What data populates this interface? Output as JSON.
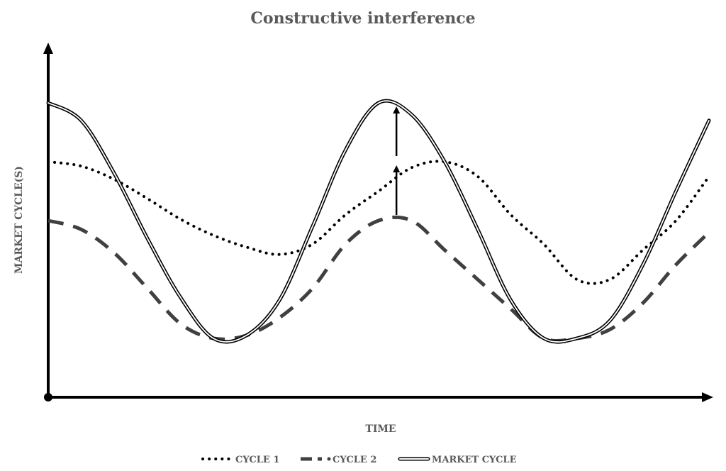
{
  "chart_data": {
    "type": "line",
    "title": "Constructive interference",
    "xlabel": "TIME",
    "ylabel": "MARKET CYCLE(S)",
    "xlim": [
      0,
      1
    ],
    "ylim": [
      0,
      1
    ],
    "grid": false,
    "legend_position": "bottom",
    "series": [
      {
        "name": "CYCLE 1",
        "style": "dotted",
        "color": "#000000",
        "x": [
          0,
          0.05,
          0.1,
          0.15,
          0.2,
          0.25,
          0.3,
          0.35,
          0.4,
          0.45,
          0.5,
          0.55,
          0.6,
          0.65,
          0.7,
          0.75,
          0.8,
          0.85,
          0.9,
          0.95,
          1.0
        ],
        "y": [
          0.8,
          0.785,
          0.74,
          0.675,
          0.605,
          0.55,
          0.51,
          0.485,
          0.52,
          0.62,
          0.7,
          0.78,
          0.8,
          0.75,
          0.62,
          0.52,
          0.4,
          0.4,
          0.5,
          0.6,
          0.75
        ]
      },
      {
        "name": "CYCLE 2",
        "style": "dashed",
        "color": "#404040",
        "x": [
          0,
          0.05,
          0.1,
          0.15,
          0.2,
          0.25,
          0.3,
          0.35,
          0.4,
          0.45,
          0.5,
          0.55,
          0.6,
          0.65,
          0.7,
          0.75,
          0.8,
          0.85,
          0.9,
          0.95,
          1.0
        ],
        "y": [
          0.6,
          0.57,
          0.49,
          0.37,
          0.25,
          0.2,
          0.21,
          0.27,
          0.37,
          0.52,
          0.6,
          0.6,
          0.5,
          0.4,
          0.3,
          0.2,
          0.2,
          0.23,
          0.32,
          0.45,
          0.56
        ]
      },
      {
        "name": "MARKET CYCLE",
        "style": "double",
        "color": "#000000",
        "x": [
          0,
          0.05,
          0.1,
          0.15,
          0.2,
          0.25,
          0.3,
          0.35,
          0.4,
          0.45,
          0.5,
          0.55,
          0.6,
          0.65,
          0.7,
          0.75,
          0.8,
          0.85,
          0.9,
          0.95,
          1.0
        ],
        "y": [
          1.0,
          0.94,
          0.76,
          0.54,
          0.34,
          0.2,
          0.21,
          0.33,
          0.58,
          0.84,
          1.0,
          0.96,
          0.8,
          0.57,
          0.33,
          0.2,
          0.2,
          0.26,
          0.45,
          0.7,
          0.94
        ]
      }
    ],
    "annotations": [
      {
        "type": "arrow",
        "x": 0.527,
        "from": 0.6,
        "to": 0.8
      },
      {
        "type": "arrow",
        "x": 0.527,
        "from": 0.8,
        "to": 1.0
      }
    ]
  }
}
